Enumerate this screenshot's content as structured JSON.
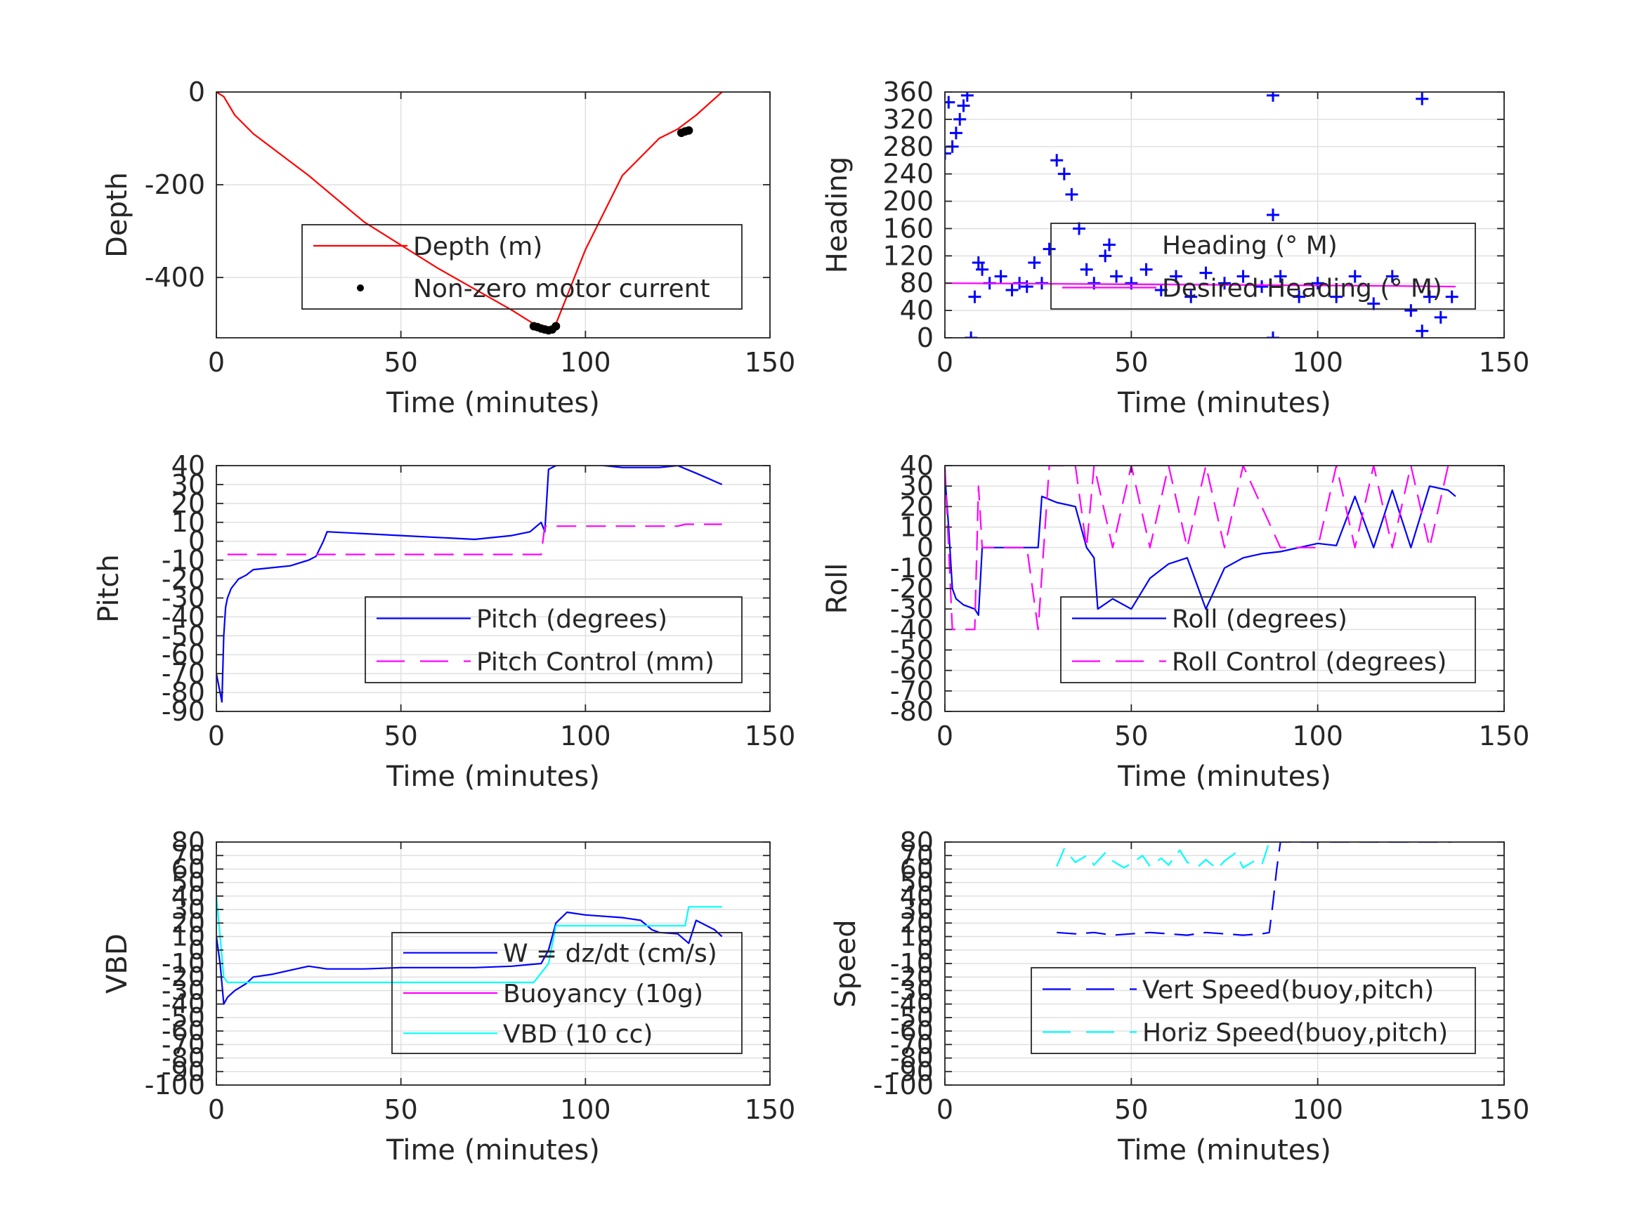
{
  "figure": {
    "background": "#ffffff",
    "grid": true
  },
  "chart_data": [
    {
      "id": "depth",
      "type": "line",
      "xlabel": "Time (minutes)",
      "ylabel": "Depth",
      "xlim": [
        0,
        150
      ],
      "ylim": [
        -530,
        0
      ],
      "xticks": [
        "0",
        "50",
        "100",
        "150"
      ],
      "xtick_values": [
        0,
        50,
        100,
        150
      ],
      "yticks": [
        "0",
        "-200",
        "-400"
      ],
      "ytick_values": [
        0,
        -200,
        -400
      ],
      "legend_location": "center-right",
      "series": [
        {
          "name": "Depth (m)",
          "color": "#ff0000",
          "style": "solid",
          "x": [
            0,
            2,
            5,
            10,
            20,
            25,
            40,
            60,
            80,
            87,
            90,
            92,
            95,
            100,
            110,
            120,
            125,
            130,
            137
          ],
          "y": [
            0,
            -10,
            -50,
            -90,
            -150,
            -180,
            -280,
            -380,
            -470,
            -505,
            -515,
            -500,
            -440,
            -340,
            -180,
            -100,
            -80,
            -50,
            0
          ]
        },
        {
          "name": "Non-zero motor current",
          "color": "#000000",
          "style": "dot",
          "x": [
            86,
            87,
            88,
            89,
            90,
            91,
            92,
            126,
            127,
            128
          ],
          "y": [
            -505,
            -507,
            -510,
            -512,
            -514,
            -512,
            -505,
            -88,
            -85,
            -83
          ]
        }
      ]
    },
    {
      "id": "heading",
      "type": "scatter",
      "xlabel": "Time (minutes)",
      "ylabel": "Heading",
      "xlim": [
        0,
        150
      ],
      "ylim": [
        0,
        360
      ],
      "xticks": [
        "0",
        "50",
        "100",
        "150"
      ],
      "xtick_values": [
        0,
        50,
        100,
        150
      ],
      "yticks": [
        "0",
        "40",
        "80",
        "120",
        "160",
        "200",
        "240",
        "280",
        "320",
        "360"
      ],
      "ytick_values": [
        0,
        40,
        80,
        120,
        160,
        200,
        240,
        280,
        320,
        360
      ],
      "legend_location": "center-right",
      "series": [
        {
          "name": "Heading (° M)",
          "color": "#0000ff",
          "style": "plus",
          "x": [
            0,
            1,
            2,
            3,
            4,
            5,
            6,
            7,
            8,
            9,
            10,
            12,
            15,
            18,
            20,
            22,
            24,
            26,
            28,
            30,
            32,
            34,
            36,
            38,
            40,
            43,
            46,
            50,
            54,
            58,
            62,
            66,
            70,
            75,
            80,
            85,
            88,
            88,
            88,
            90,
            95,
            100,
            105,
            110,
            115,
            120,
            125,
            128,
            128,
            130,
            133,
            136
          ],
          "y": [
            270,
            345,
            280,
            300,
            320,
            340,
            355,
            0,
            60,
            110,
            100,
            80,
            90,
            70,
            80,
            75,
            110,
            80,
            130,
            260,
            240,
            210,
            160,
            100,
            80,
            120,
            90,
            80,
            100,
            70,
            90,
            60,
            95,
            80,
            90,
            75,
            0,
            180,
            355,
            90,
            60,
            80,
            60,
            90,
            50,
            90,
            40,
            350,
            10,
            60,
            30,
            60
          ]
        },
        {
          "name": "Desired Heading (° M)",
          "color": "#ff00ff",
          "style": "solid",
          "x": [
            0,
            30,
            60,
            90,
            120,
            137
          ],
          "y": [
            80,
            79,
            78,
            77,
            76,
            75
          ]
        }
      ]
    },
    {
      "id": "pitch",
      "type": "line",
      "xlabel": "Time (minutes)",
      "ylabel": "Pitch",
      "xlim": [
        0,
        150
      ],
      "ylim": [
        -90,
        40
      ],
      "xticks": [
        "0",
        "50",
        "100",
        "150"
      ],
      "xtick_values": [
        0,
        50,
        100,
        150
      ],
      "yticks": [
        "-90",
        "-80",
        "-70",
        "-60",
        "-50",
        "-40",
        "-30",
        "-20",
        "-10",
        "0",
        "10",
        "20",
        "30",
        "40"
      ],
      "ytick_values": [
        -90,
        -80,
        -70,
        -60,
        -50,
        -40,
        -30,
        -20,
        -10,
        0,
        10,
        20,
        30,
        40
      ],
      "legend_location": "bottom-right",
      "series": [
        {
          "name": "Pitch (degrees)",
          "color": "#0000ff",
          "style": "solid",
          "x": [
            0,
            1,
            1.5,
            2,
            2.5,
            3,
            4,
            6,
            8,
            10,
            15,
            20,
            25,
            27,
            29,
            30,
            40,
            50,
            60,
            70,
            80,
            85,
            88,
            89,
            90,
            92,
            100,
            110,
            120,
            125,
            130,
            137
          ],
          "y": [
            -70,
            -80,
            -85,
            -50,
            -35,
            -30,
            -25,
            -20,
            -18,
            -15,
            -14,
            -13,
            -10,
            -8,
            0,
            5,
            4,
            3,
            2,
            1,
            3,
            5,
            10,
            5,
            38,
            40,
            41,
            39,
            39,
            40,
            36,
            30
          ]
        },
        {
          "name": "Pitch Control (mm)",
          "color": "#ff00ff",
          "style": "dash",
          "x": [
            3,
            25,
            28,
            50,
            88,
            89,
            90,
            125,
            127,
            137
          ],
          "y": [
            -7,
            -7,
            -7,
            -7,
            -7,
            8,
            8,
            8,
            9,
            9
          ]
        }
      ]
    },
    {
      "id": "roll",
      "type": "line",
      "xlabel": "Time (minutes)",
      "ylabel": "Roll",
      "xlim": [
        0,
        150
      ],
      "ylim": [
        -80,
        40
      ],
      "xticks": [
        "0",
        "50",
        "100",
        "150"
      ],
      "xtick_values": [
        0,
        50,
        100,
        150
      ],
      "yticks": [
        "-80",
        "-70",
        "-60",
        "-50",
        "-40",
        "-30",
        "-20",
        "-10",
        "0",
        "10",
        "20",
        "30",
        "40"
      ],
      "ytick_values": [
        -80,
        -70,
        -60,
        -50,
        -40,
        -30,
        -20,
        -10,
        0,
        10,
        20,
        30,
        40
      ],
      "legend_location": "bottom-right",
      "series": [
        {
          "name": "Roll (degrees)",
          "color": "#0000ff",
          "style": "solid",
          "x": [
            0,
            1,
            2,
            3,
            5,
            8,
            9,
            10,
            22,
            25,
            26,
            30,
            35,
            38,
            40,
            41,
            45,
            50,
            55,
            60,
            65,
            70,
            75,
            80,
            85,
            90,
            95,
            100,
            105,
            110,
            115,
            120,
            125,
            130,
            135,
            137
          ],
          "y": [
            35,
            10,
            -20,
            -25,
            -28,
            -30,
            -33,
            0,
            0,
            0,
            25,
            22,
            20,
            0,
            -5,
            -30,
            -25,
            -30,
            -15,
            -8,
            -5,
            -30,
            -10,
            -5,
            -3,
            -2,
            0,
            2,
            1,
            25,
            0,
            28,
            0,
            30,
            28,
            25
          ]
        },
        {
          "name": "Roll Control (degrees)",
          "color": "#ff00ff",
          "style": "dash",
          "x": [
            0,
            2,
            5,
            8,
            9,
            10,
            22,
            25,
            28,
            30,
            35,
            38,
            40,
            45,
            50,
            55,
            60,
            65,
            70,
            75,
            80,
            90,
            95,
            100,
            105,
            110,
            115,
            120,
            125,
            130,
            135,
            137
          ],
          "y": [
            40,
            -40,
            -40,
            -40,
            30,
            0,
            0,
            -40,
            40,
            40,
            40,
            0,
            40,
            0,
            40,
            0,
            40,
            0,
            40,
            0,
            40,
            0,
            0,
            0,
            40,
            0,
            40,
            0,
            40,
            0,
            40,
            40
          ]
        }
      ]
    },
    {
      "id": "vbd",
      "type": "line",
      "xlabel": "Time (minutes)",
      "ylabel": "VBD",
      "xlim": [
        0,
        150
      ],
      "ylim": [
        -100,
        80
      ],
      "xticks": [
        "0",
        "50",
        "100",
        "150"
      ],
      "xtick_values": [
        0,
        50,
        100,
        150
      ],
      "yticks": [
        "-100",
        "-90",
        "-80",
        "-70",
        "-60",
        "-50",
        "-40",
        "-30",
        "-20",
        "-10",
        "0",
        "10",
        "20",
        "30",
        "40",
        "50",
        "60",
        "70",
        "80"
      ],
      "ytick_values": [
        -100,
        -90,
        -80,
        -70,
        -60,
        -50,
        -40,
        -30,
        -20,
        -10,
        0,
        10,
        20,
        30,
        40,
        50,
        60,
        70,
        80
      ],
      "legend_location": "center-right",
      "series": [
        {
          "name": "W = dz/dt (cm/s)",
          "color": "#0000ff",
          "style": "solid",
          "x": [
            0,
            1,
            2,
            3,
            5,
            8,
            10,
            15,
            20,
            25,
            30,
            40,
            50,
            60,
            70,
            80,
            88,
            90,
            92,
            95,
            100,
            110,
            115,
            118,
            120,
            125,
            128,
            130,
            135,
            137
          ],
          "y": [
            10,
            -10,
            -40,
            -35,
            -30,
            -25,
            -20,
            -18,
            -15,
            -12,
            -14,
            -14,
            -13,
            -13,
            -13,
            -12,
            -10,
            0,
            20,
            28,
            26,
            24,
            22,
            15,
            13,
            12,
            5,
            22,
            15,
            10
          ]
        },
        {
          "name": "Buoyancy (10g)",
          "color": "#ff00ff",
          "style": "solid",
          "x": [],
          "y": []
        },
        {
          "name": "VBD (10 cc)",
          "color": "#00ffff",
          "style": "solid",
          "x": [
            0,
            1,
            2,
            3,
            30,
            60,
            86,
            90,
            92,
            100,
            120,
            127,
            128,
            130,
            137
          ],
          "y": [
            40,
            10,
            -20,
            -24,
            -24,
            -24,
            -24,
            -10,
            18,
            18,
            18,
            18,
            32,
            32,
            32
          ]
        }
      ]
    },
    {
      "id": "speed",
      "type": "line",
      "xlabel": "Time (minutes)",
      "ylabel": "Speed",
      "xlim": [
        0,
        150
      ],
      "ylim": [
        -100,
        80
      ],
      "xticks": [
        "0",
        "50",
        "100",
        "150"
      ],
      "xtick_values": [
        0,
        50,
        100,
        150
      ],
      "yticks": [
        "-100",
        "-90",
        "-80",
        "-70",
        "-60",
        "-50",
        "-40",
        "-30",
        "-20",
        "-10",
        "0",
        "10",
        "20",
        "30",
        "40",
        "50",
        "60",
        "70",
        "80"
      ],
      "ytick_values": [
        -100,
        -90,
        -80,
        -70,
        -60,
        -50,
        -40,
        -30,
        -20,
        -10,
        0,
        10,
        20,
        30,
        40,
        50,
        60,
        70,
        80
      ],
      "legend_location": "bottom-right",
      "series": [
        {
          "name": "Vert Speed(buoy,pitch)",
          "color": "#0000ff",
          "style": "dash",
          "x": [
            30,
            35,
            40,
            45,
            50,
            55,
            60,
            65,
            70,
            75,
            80,
            85,
            87,
            88,
            89,
            90,
            136
          ],
          "y": [
            13,
            12,
            13,
            11,
            12,
            13,
            12,
            11,
            13,
            12,
            11,
            12,
            13,
            35,
            60,
            80,
            80
          ]
        },
        {
          "name": "Horiz Speed(buoy,pitch)",
          "color": "#00ffff",
          "style": "dash",
          "x": [
            30,
            32,
            35,
            38,
            40,
            43,
            45,
            48,
            50,
            53,
            55,
            58,
            60,
            63,
            65,
            68,
            70,
            73,
            75,
            78,
            80,
            83,
            85,
            87
          ],
          "y": [
            62,
            75,
            65,
            70,
            63,
            72,
            66,
            61,
            64,
            70,
            62,
            68,
            63,
            74,
            65,
            62,
            67,
            60,
            66,
            72,
            61,
            66,
            63,
            80
          ]
        }
      ]
    }
  ]
}
